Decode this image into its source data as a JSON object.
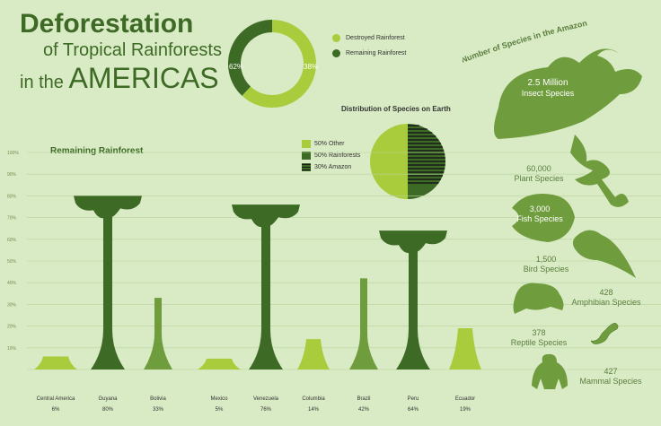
{
  "title": {
    "line1": "Deforestation",
    "line2": "of Tropical Rainforests",
    "line3a": "in the",
    "line3b": "AMERICAS"
  },
  "colors": {
    "dark": "#3d6a25",
    "mid": "#6f9c3d",
    "light": "#a8cc3c",
    "bg": "#d9ebc4"
  },
  "donut": {
    "chart_data": {
      "type": "pie",
      "labels": [
        "Destroyed Rainforest",
        "Remaining Rainforest"
      ],
      "values": [
        62,
        38
      ],
      "value_labels": [
        "62%",
        "38%"
      ]
    }
  },
  "distribution": {
    "title": "Distribution of Species on Earth",
    "legend": [
      "50% Other",
      "50% Rainforests",
      "30% Amazon"
    ],
    "chart_data": {
      "type": "pie",
      "labels": [
        "Other",
        "Rainforests",
        "Amazon"
      ],
      "values": [
        50,
        50,
        30
      ]
    }
  },
  "bar_chart": {
    "title": "Remaining Rainforest",
    "y_ticks": [
      "100%",
      "90%",
      "80%",
      "70%",
      "60%",
      "50%",
      "40%",
      "30%",
      "20%",
      "10%"
    ],
    "chart_data": {
      "type": "bar",
      "categories": [
        "Central America",
        "Guyana",
        "Bolivia",
        "Mexico",
        "Venezuela",
        "Columbia",
        "Brazil",
        "Peru",
        "Ecuador"
      ],
      "values": [
        6,
        80,
        33,
        5,
        76,
        14,
        42,
        64,
        19
      ],
      "value_labels": [
        "6%",
        "80%",
        "33%",
        "5%",
        "76%",
        "14%",
        "42%",
        "64%",
        "19%"
      ],
      "ylim": [
        0,
        100
      ]
    }
  },
  "species": {
    "title": "Number of Species in the Amazon",
    "insects": {
      "count": "2.5 Million",
      "label": "Insect Species"
    },
    "plants": {
      "count": "60,000",
      "label": "Plant Species"
    },
    "fish": {
      "count": "3,000",
      "label": "Fish Species"
    },
    "birds": {
      "count": "1,500",
      "label": "Bird Species"
    },
    "amphibians": {
      "count": "428",
      "label": "Amphibian Species"
    },
    "reptiles": {
      "count": "378",
      "label": "Reptile Species"
    },
    "mammals": {
      "count": "427",
      "label": "Mammal Species"
    }
  }
}
